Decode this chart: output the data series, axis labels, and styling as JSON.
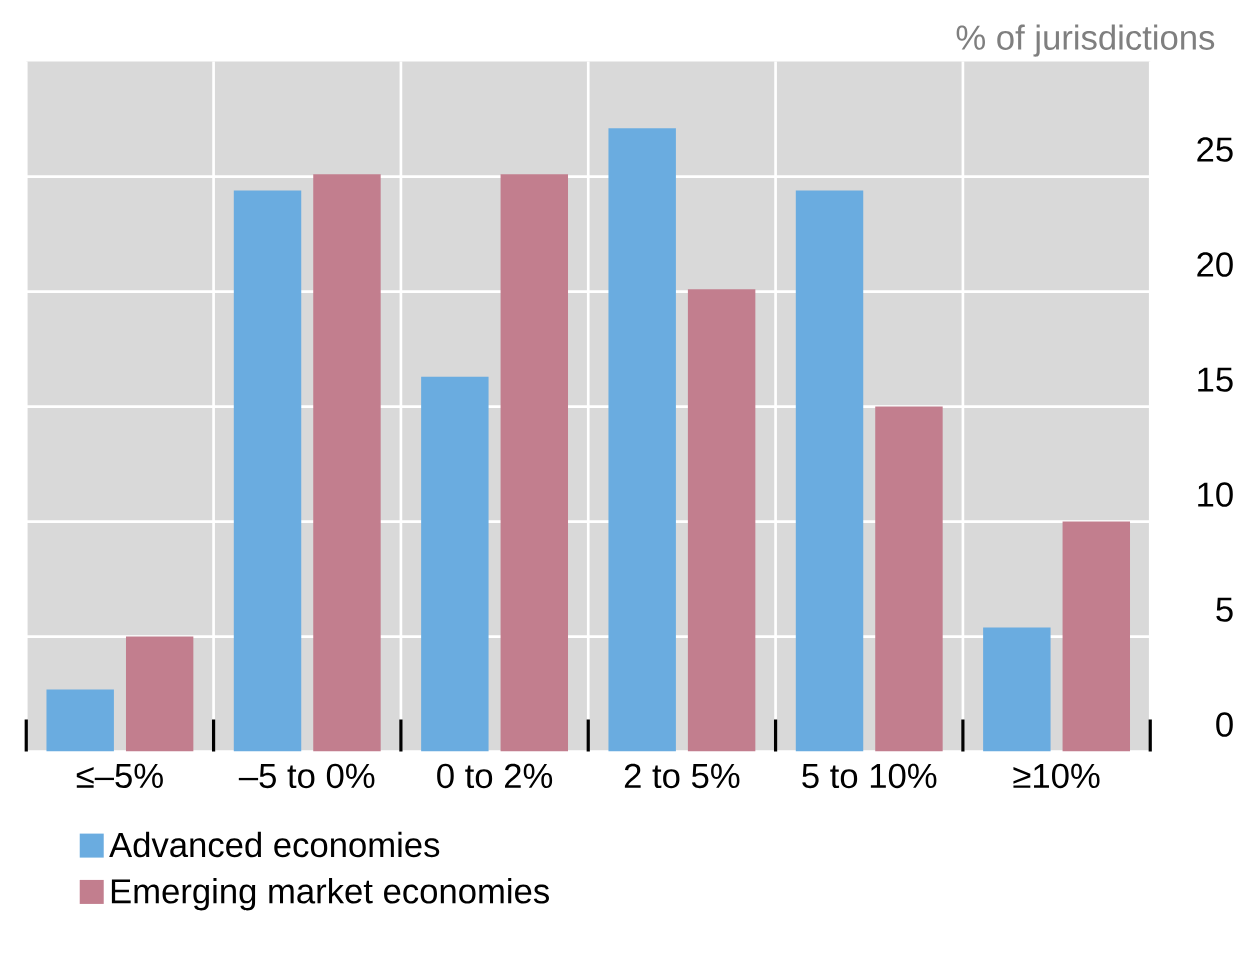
{
  "chart_data": {
    "type": "bar",
    "ylabel": "% of jurisdictions",
    "categories": [
      "≤–5%",
      "–5 to 0%",
      "0 to 2%",
      "2 to 5%",
      "5 to 10%",
      "≥10%"
    ],
    "series": [
      {
        "name": "Advanced economies",
        "color": "#6aace0",
        "values": [
          2.7,
          24.4,
          16.3,
          27.1,
          24.4,
          5.4
        ]
      },
      {
        "name": "Emerging market economies",
        "color": "#c27e8e",
        "values": [
          5.0,
          25.1,
          25.1,
          20.1,
          15.0,
          10.0
        ]
      }
    ],
    "ylim": [
      0,
      30
    ],
    "yticks": [
      0,
      5,
      10,
      15,
      20,
      25
    ],
    "grid": true,
    "legend": "bottom"
  }
}
